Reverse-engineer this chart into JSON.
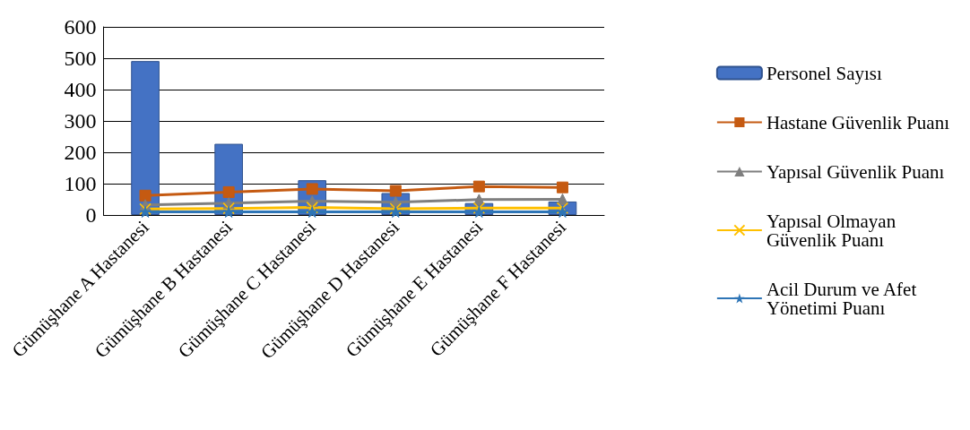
{
  "chart_data": {
    "type": "bar",
    "categories": [
      "Gümüşhane A Hastanesi",
      "Gümüşhane B Hastanesi",
      "Gümüşhane C Hastanesi",
      "Gümüşhane D Hastanesi",
      "Gümüşhane E Hastanesi",
      "Gümüşhane F Hastanesi"
    ],
    "series": [
      {
        "name": "Personel Sayısı",
        "color": "#4472c4",
        "values": [
          491,
          227,
          111,
          70,
          38,
          43
        ]
      },
      {
        "name": "Hastane Güvenlik Puanı",
        "type": "line",
        "marker": "square",
        "color": "#c55a11",
        "values": [
          62,
          73,
          83,
          77,
          91,
          88
        ]
      },
      {
        "name": "Yapısal Güvenlik Puanı",
        "type": "line",
        "marker": "triangle",
        "color": "#7f7f7f",
        "values": [
          32,
          38,
          44,
          41,
          49,
          50
        ]
      },
      {
        "name": "Yapısal Olmayan Güvenlik Puanı",
        "type": "line",
        "marker": "cross",
        "color": "#ffc000",
        "values": [
          19,
          21,
          24,
          20,
          22,
          22
        ]
      },
      {
        "name": "Acil Durum ve Afet Yönetimi Puanı",
        "type": "line",
        "marker": "star",
        "color": "#2e75b6",
        "values": [
          10,
          10,
          10,
          10,
          10,
          10
        ]
      }
    ],
    "ylim": [
      0,
      600
    ],
    "yticks": [
      0,
      100,
      200,
      300,
      400,
      500,
      600
    ],
    "grid": "y",
    "legend": "right"
  }
}
